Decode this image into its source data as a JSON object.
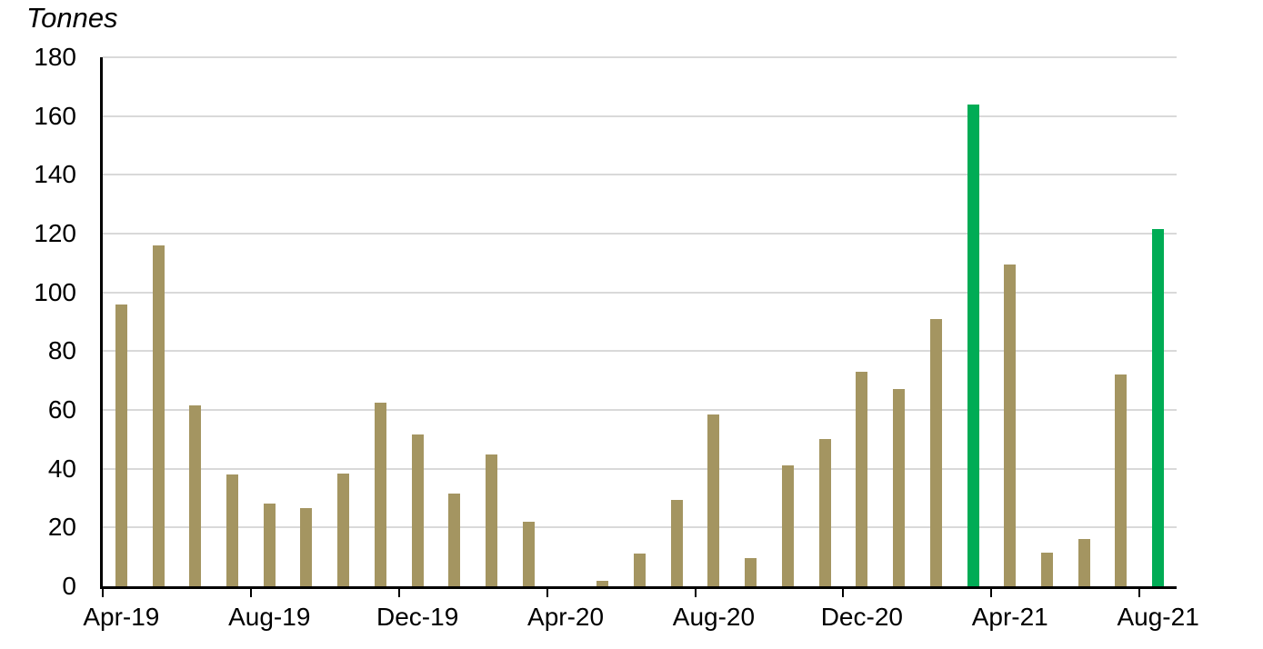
{
  "chart_data": {
    "type": "bar",
    "title": "Tonnes",
    "categories": [
      "Apr-19",
      "May-19",
      "Jun-19",
      "Jul-19",
      "Aug-19",
      "Sep-19",
      "Oct-19",
      "Nov-19",
      "Dec-19",
      "Jan-20",
      "Feb-20",
      "Mar-20",
      "Apr-20",
      "May-20",
      "Jun-20",
      "Jul-20",
      "Aug-20",
      "Sep-20",
      "Oct-20",
      "Nov-20",
      "Dec-20",
      "Jan-21",
      "Feb-21",
      "Mar-21",
      "Apr-21",
      "May-21",
      "Jun-21",
      "Jul-21",
      "Aug-21"
    ],
    "values": [
      96,
      116,
      61.5,
      38,
      28,
      26.5,
      38.5,
      62.5,
      51.5,
      31.5,
      45,
      22,
      0,
      2,
      11,
      29.5,
      58.5,
      9.5,
      41,
      50,
      73,
      67,
      91,
      164,
      109.5,
      11.5,
      16,
      72,
      121.5
    ],
    "highlight_categories": [
      "Mar-21",
      "Aug-21"
    ],
    "x_tick_labels": [
      "Apr-19",
      "Aug-19",
      "Dec-19",
      "Apr-20",
      "Aug-20",
      "Dec-20",
      "Apr-21",
      "Aug-21"
    ],
    "y_ticks": [
      0,
      20,
      40,
      60,
      80,
      100,
      120,
      140,
      160,
      180
    ],
    "ylim": [
      0,
      180
    ],
    "xlabel": "",
    "ylabel": "Tonnes",
    "grid": "horizontal",
    "legend": "none",
    "colors": {
      "bar": "#A49561",
      "highlight": "#00AC55",
      "gridline": "#D9D9D9",
      "axis": "#000000",
      "text": "#000000"
    }
  }
}
